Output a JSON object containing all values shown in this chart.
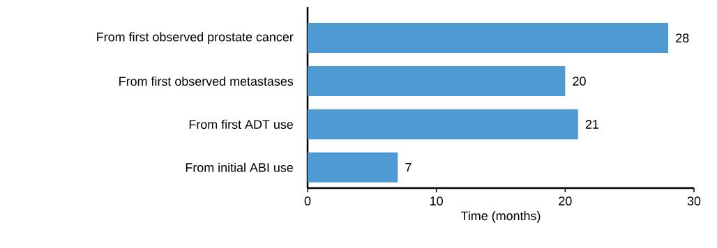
{
  "chart_data": {
    "type": "bar",
    "orientation": "horizontal",
    "categories": [
      "From first observed prostate cancer",
      "From first observed metastases",
      "From first ADT use",
      "From initial ABI use"
    ],
    "values": [
      28,
      20,
      21,
      7
    ],
    "color": "#4e9ad3",
    "xlabel": "Time (months)",
    "xlim": [
      0,
      30
    ],
    "xticks": [
      0,
      10,
      20,
      30
    ],
    "data_labels": true
  }
}
